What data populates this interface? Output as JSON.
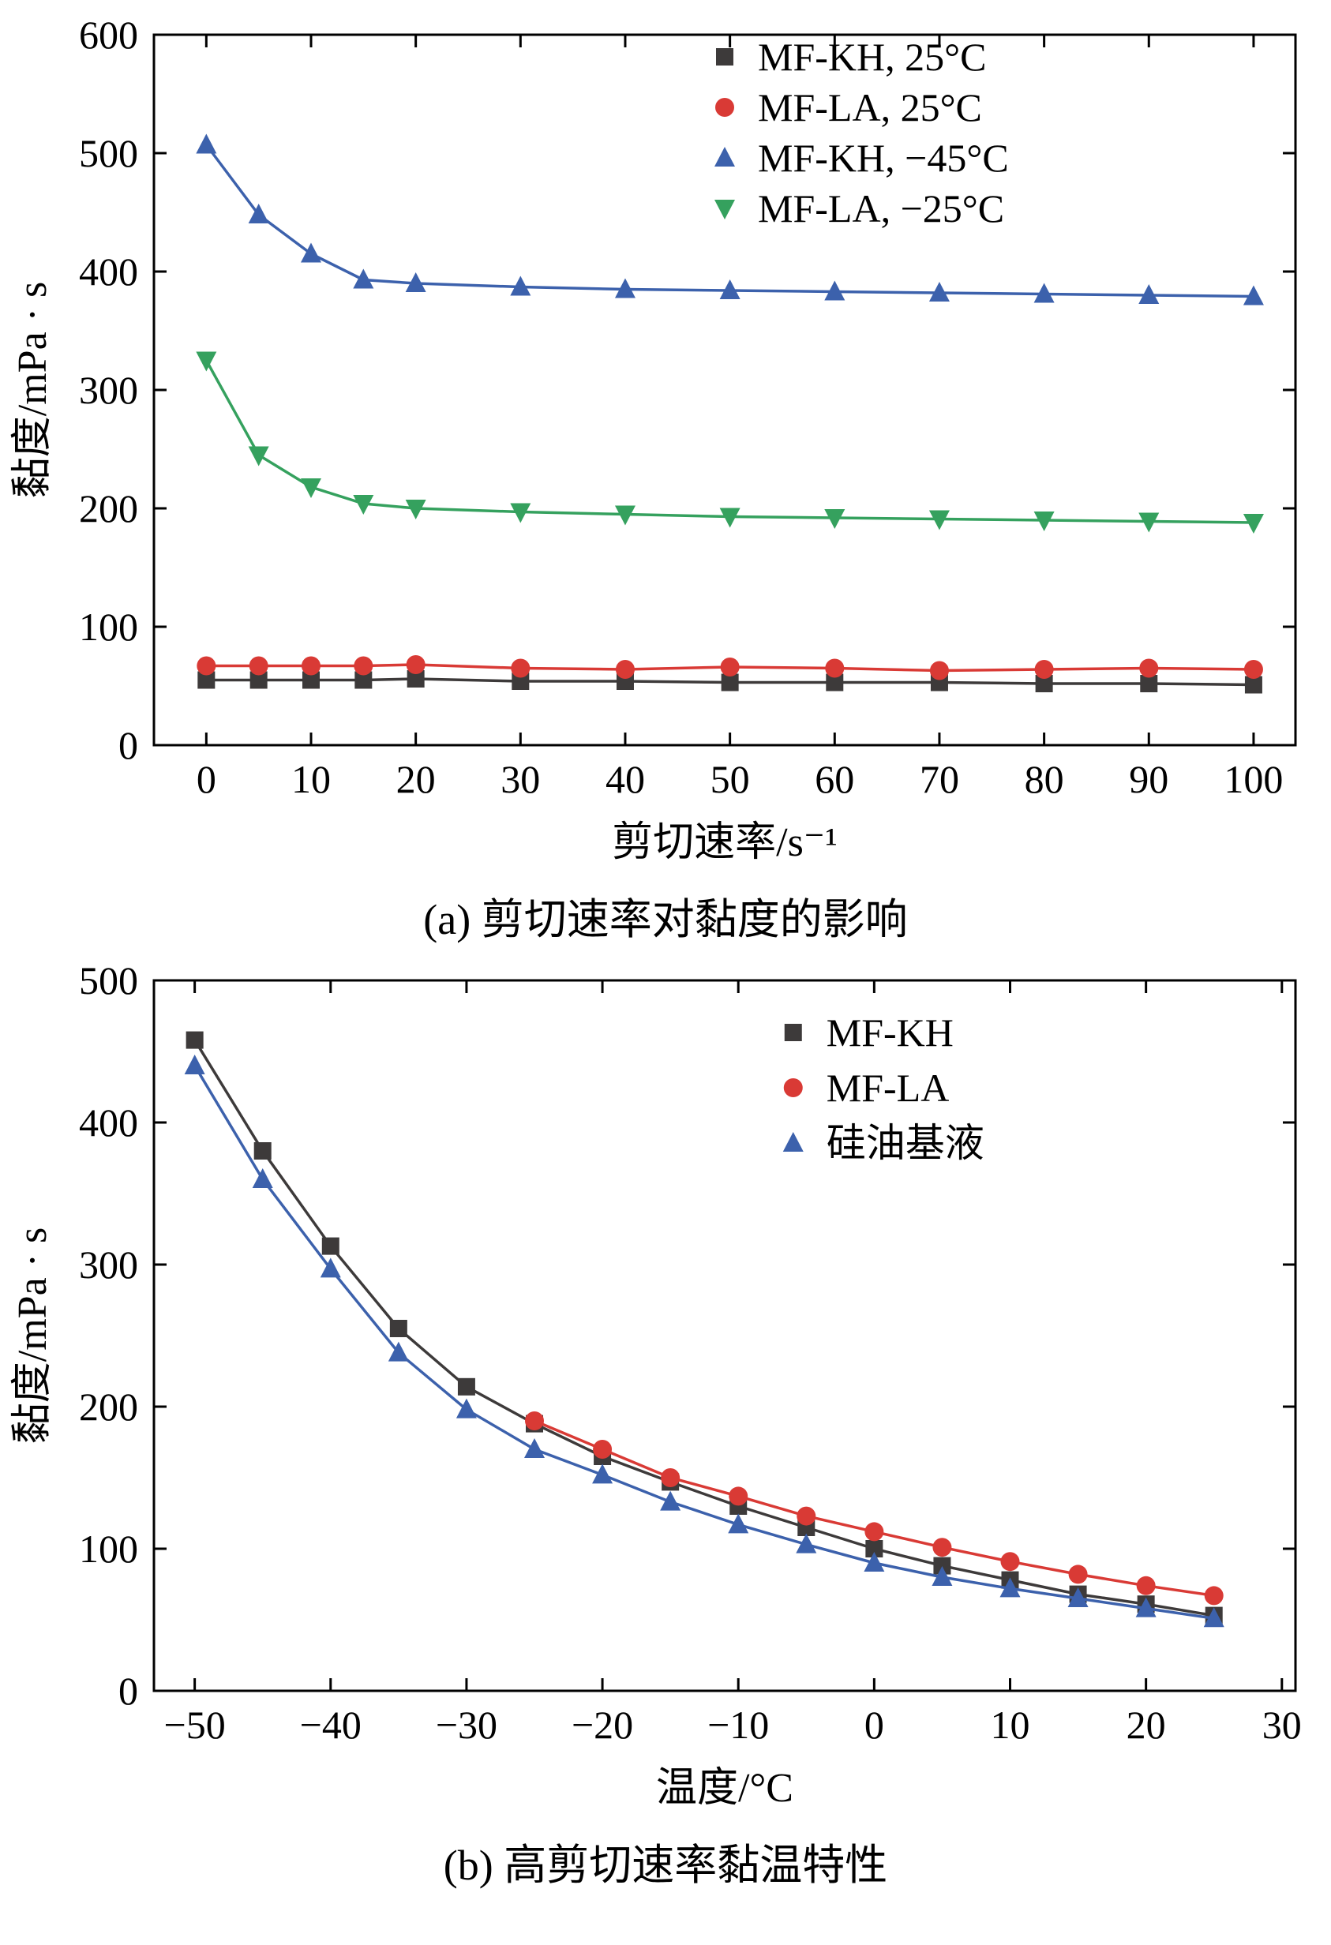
{
  "figure": {
    "captions": {
      "a": "(a) 剪切速率对黏度的影响",
      "b": "(b) 高剪切速率黏温特性"
    }
  },
  "colors": {
    "dark": "#3d3a3a",
    "red": "#d93a35",
    "blue": "#3c61ac",
    "green": "#35a15e",
    "axis": "#000000"
  },
  "chart_data": [
    {
      "id": "a",
      "type": "line",
      "title": "",
      "xlabel": "剪切速率/s⁻¹",
      "ylabel": "黏度/mPa · s",
      "xlim": [
        -5,
        104
      ],
      "ylim": [
        0,
        600
      ],
      "xticks": [
        0,
        10,
        20,
        30,
        40,
        50,
        60,
        70,
        80,
        90,
        100
      ],
      "yticks": [
        0,
        100,
        200,
        300,
        400,
        500,
        600
      ],
      "grid": false,
      "legend_position": "inside-top-right",
      "series": [
        {
          "name": "MF-KH, 25°C",
          "marker": "square",
          "color": "#3d3a3a",
          "x": [
            0,
            5,
            10,
            15,
            20,
            30,
            40,
            50,
            60,
            70,
            80,
            90,
            100
          ],
          "y": [
            55,
            55,
            55,
            55,
            56,
            54,
            54,
            53,
            53,
            53,
            52,
            52,
            51
          ]
        },
        {
          "name": "MF-LA, 25°C",
          "marker": "circle",
          "color": "#d93a35",
          "x": [
            0,
            5,
            10,
            15,
            20,
            30,
            40,
            50,
            60,
            70,
            80,
            90,
            100
          ],
          "y": [
            67,
            67,
            67,
            67,
            68,
            65,
            64,
            66,
            65,
            63,
            64,
            65,
            64
          ]
        },
        {
          "name": "MF-KH, −45°C",
          "marker": "triangle-up",
          "color": "#3c61ac",
          "x": [
            0,
            5,
            10,
            15,
            20,
            30,
            40,
            50,
            60,
            70,
            80,
            90,
            100
          ],
          "y": [
            507,
            448,
            415,
            393,
            390,
            387,
            385,
            384,
            383,
            382,
            381,
            380,
            379
          ]
        },
        {
          "name": "MF-LA, −25°C",
          "marker": "triangle-down",
          "color": "#35a15e",
          "x": [
            0,
            5,
            10,
            15,
            20,
            30,
            40,
            50,
            60,
            70,
            80,
            90,
            100
          ],
          "y": [
            325,
            245,
            218,
            204,
            200,
            197,
            195,
            193,
            192,
            191,
            190,
            189,
            188
          ]
        }
      ]
    },
    {
      "id": "b",
      "type": "line",
      "title": "",
      "xlabel": "温度/°C",
      "ylabel": "黏度/mPa · s",
      "xlim": [
        -53,
        31
      ],
      "ylim": [
        0,
        500
      ],
      "xticks": [
        -50,
        -40,
        -30,
        -20,
        -10,
        0,
        10,
        20,
        30
      ],
      "yticks": [
        0,
        100,
        200,
        300,
        400,
        500
      ],
      "grid": false,
      "legend_position": "inside-top-right",
      "series": [
        {
          "name": "MF-KH",
          "marker": "square",
          "color": "#3d3a3a",
          "x": [
            -50,
            -45,
            -40,
            -35,
            -30,
            -25,
            -20,
            -15,
            -10,
            -5,
            0,
            5,
            10,
            15,
            20,
            25
          ],
          "y": [
            458,
            380,
            313,
            255,
            214,
            188,
            165,
            147,
            130,
            115,
            100,
            88,
            78,
            68,
            61,
            53
          ]
        },
        {
          "name": "MF-LA",
          "marker": "circle",
          "color": "#d93a35",
          "x": [
            -25,
            -20,
            -15,
            -10,
            -5,
            0,
            5,
            10,
            15,
            20,
            25
          ],
          "y": [
            190,
            170,
            150,
            137,
            123,
            112,
            101,
            91,
            82,
            74,
            67
          ]
        },
        {
          "name": "硅油基液",
          "marker": "triangle-up",
          "color": "#3c61ac",
          "x": [
            -50,
            -45,
            -40,
            -35,
            -30,
            -25,
            -20,
            -15,
            -10,
            -5,
            0,
            5,
            10,
            15,
            20,
            25
          ],
          "y": [
            440,
            360,
            297,
            238,
            198,
            170,
            152,
            133,
            117,
            103,
            90,
            80,
            72,
            65,
            58,
            51
          ]
        }
      ]
    }
  ]
}
